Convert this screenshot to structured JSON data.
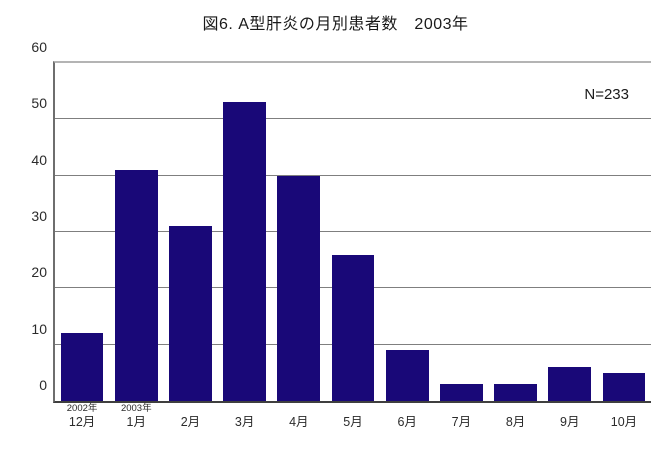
{
  "title": "図6. A型肝炎の月別患者数　2003年",
  "annotation": "N=233",
  "colors": {
    "bar": "#190878",
    "grid": "#7f7f7f",
    "axis": "#3f3f3f",
    "background": "#ffffff",
    "text": "#1a1a1a"
  },
  "chart_data": {
    "type": "bar",
    "title": "図6. A型肝炎の月別患者数　2003年",
    "annotation": "N=233",
    "categories": [
      "12月",
      "1月",
      "2月",
      "3月",
      "4月",
      "5月",
      "6月",
      "7月",
      "8月",
      "9月",
      "10月"
    ],
    "year_labels": [
      "2002年",
      "2003年",
      "",
      "",
      "",
      "",
      "",
      "",
      "",
      "",
      ""
    ],
    "values": [
      12,
      41,
      31,
      53,
      40,
      26,
      9,
      3,
      3,
      6,
      5
    ],
    "xlabel": "",
    "ylabel": "",
    "ylim": [
      0,
      60
    ],
    "yticks": [
      0,
      10,
      20,
      30,
      40,
      50,
      60
    ],
    "grid": true,
    "legend": false,
    "bar_color": "#190878"
  }
}
